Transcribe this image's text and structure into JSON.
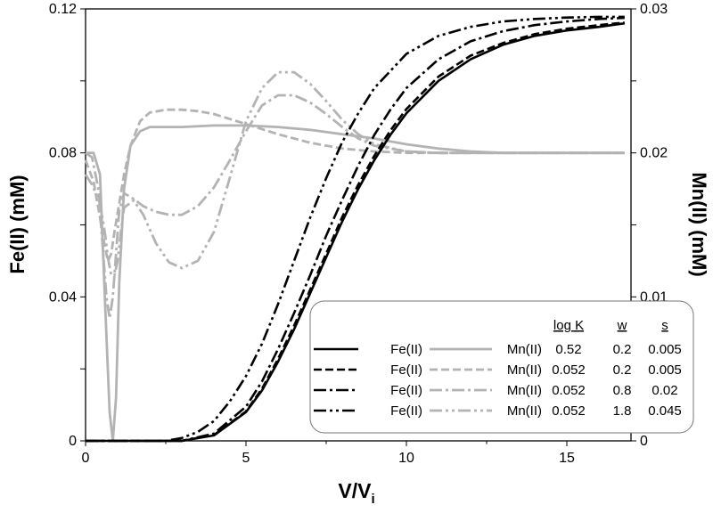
{
  "chart_data": {
    "type": "line",
    "xlabel": "V/V",
    "xlabel_sub": "i",
    "ylabel_left": "Fe(II) (mM)",
    "ylabel_right": "Mn(II) (mM)",
    "xlim": [
      0,
      17
    ],
    "ylim_left": [
      0,
      0.12
    ],
    "ylim_right": [
      0,
      0.03
    ],
    "x_ticks": [
      0,
      5,
      10,
      15
    ],
    "x_tick_labels": [
      "0",
      "5",
      "10",
      "15"
    ],
    "y_left_ticks": [
      0,
      0.04,
      0.08,
      0.12
    ],
    "y_left_tick_labels": [
      "0",
      "0.04",
      "0.08",
      "0.12"
    ],
    "y_right_ticks": [
      0,
      0.01,
      0.02,
      0.03
    ],
    "y_right_tick_labels": [
      "0",
      "0.01",
      "0.02",
      "0.03"
    ],
    "grid": false,
    "legend": {
      "placement": "bottom-right",
      "headers": [
        "log K",
        "w",
        "s"
      ],
      "rows": [
        {
          "fe_label": "Fe(II)",
          "mn_label": "Mn(II)",
          "logK": "0.52",
          "w": "0.2",
          "s": "0.005",
          "dash": "solid"
        },
        {
          "fe_label": "Fe(II)",
          "mn_label": "Mn(II)",
          "logK": "0.052",
          "w": "0.2",
          "s": "0.005",
          "dash": "dashed"
        },
        {
          "fe_label": "Fe(II)",
          "mn_label": "Mn(II)",
          "logK": "0.052",
          "w": "0.8",
          "s": "0.02",
          "dash": "dash-dot"
        },
        {
          "fe_label": "Fe(II)",
          "mn_label": "Mn(II)",
          "logK": "0.052",
          "w": "1.8",
          "s": "0.045",
          "dash": "dash-dot-dot"
        }
      ]
    },
    "colors": {
      "fe": "#000000",
      "mn": "#b3b3b3"
    },
    "series": [
      {
        "group": "fe",
        "dash": "solid",
        "axis": "left",
        "x": [
          0,
          3,
          4,
          5,
          5.5,
          6,
          6.5,
          7,
          7.5,
          8,
          8.5,
          9,
          9.5,
          10,
          11,
          12,
          13,
          14,
          15,
          16,
          16.8
        ],
        "y": [
          0,
          0,
          0.0015,
          0.008,
          0.014,
          0.022,
          0.031,
          0.041,
          0.051,
          0.061,
          0.07,
          0.078,
          0.085,
          0.091,
          0.1,
          0.106,
          0.11,
          0.1125,
          0.114,
          0.115,
          0.116
        ]
      },
      {
        "group": "fe",
        "dash": "dashed",
        "axis": "left",
        "x": [
          0,
          3,
          4,
          5,
          5.5,
          6,
          6.5,
          7,
          7.5,
          8,
          8.5,
          9,
          9.5,
          10,
          11,
          12,
          13,
          14,
          15,
          16,
          16.8
        ],
        "y": [
          0,
          0,
          0.0016,
          0.0082,
          0.0145,
          0.0228,
          0.032,
          0.042,
          0.052,
          0.0622,
          0.0712,
          0.0792,
          0.0862,
          0.0922,
          0.1012,
          0.107,
          0.1105,
          0.113,
          0.1145,
          0.1155,
          0.1162
        ]
      },
      {
        "group": "fe",
        "dash": "dash-dot",
        "axis": "left",
        "x": [
          0,
          3,
          4,
          5,
          5.5,
          6,
          6.5,
          7,
          7.5,
          8,
          8.5,
          9,
          9.5,
          10,
          11,
          12,
          13,
          14,
          15,
          16,
          16.8
        ],
        "y": [
          0,
          0,
          0.002,
          0.0095,
          0.0165,
          0.0255,
          0.0355,
          0.046,
          0.057,
          0.067,
          0.0765,
          0.085,
          0.092,
          0.098,
          0.106,
          0.111,
          0.1138,
          0.1155,
          0.1165,
          0.1172,
          0.1175
        ]
      },
      {
        "group": "fe",
        "dash": "dash-dot-dot",
        "axis": "left",
        "x": [
          0,
          2.5,
          3,
          3.5,
          4,
          4.5,
          5,
          5.5,
          6,
          6.5,
          7,
          7.5,
          8,
          8.5,
          9,
          10,
          11,
          12,
          13,
          14,
          15,
          16,
          16.8
        ],
        "y": [
          0,
          0,
          0.0008,
          0.0025,
          0.0055,
          0.011,
          0.018,
          0.027,
          0.038,
          0.05,
          0.062,
          0.073,
          0.083,
          0.091,
          0.098,
          0.1075,
          0.1125,
          0.115,
          0.1165,
          0.1172,
          0.1176,
          0.1178,
          0.1178
        ]
      },
      {
        "group": "mn",
        "dash": "solid",
        "axis": "right",
        "x": [
          0,
          0.25,
          0.45,
          0.6,
          0.75,
          0.85,
          0.95,
          1.05,
          1.2,
          1.4,
          1.7,
          2,
          2.5,
          3,
          4,
          5,
          6,
          7,
          8,
          9,
          10,
          11,
          12,
          13,
          14,
          15,
          16,
          16.8
        ],
        "y": [
          0.02,
          0.02,
          0.0185,
          0.01,
          0.002,
          0,
          0.003,
          0.011,
          0.0175,
          0.0205,
          0.0215,
          0.0218,
          0.0218,
          0.0218,
          0.0219,
          0.0219,
          0.0218,
          0.0216,
          0.0213,
          0.021,
          0.0206,
          0.0203,
          0.0201,
          0.02,
          0.02,
          0.02,
          0.02,
          0.02
        ]
      },
      {
        "group": "mn",
        "dash": "dashed",
        "axis": "right",
        "x": [
          0,
          0.25,
          0.45,
          0.6,
          0.7,
          0.8,
          0.9,
          1.05,
          1.2,
          1.4,
          1.7,
          2,
          2.5,
          3,
          3.5,
          4,
          5,
          6,
          7,
          8,
          9,
          10,
          11,
          12,
          13,
          14,
          15,
          16,
          16.8
        ],
        "y": [
          0.0195,
          0.018,
          0.0155,
          0.0135,
          0.0125,
          0.013,
          0.0145,
          0.0165,
          0.0185,
          0.0205,
          0.0222,
          0.0228,
          0.023,
          0.023,
          0.0229,
          0.0227,
          0.022,
          0.0213,
          0.0207,
          0.0203,
          0.0201,
          0.02,
          0.02,
          0.02,
          0.02,
          0.02,
          0.02,
          0.02,
          0.02
        ]
      },
      {
        "group": "mn",
        "dash": "dash-dot",
        "axis": "right",
        "x": [
          0,
          0.2,
          0.4,
          0.55,
          0.65,
          0.75,
          0.85,
          0.95,
          1.05,
          1.2,
          1.5,
          1.8,
          2.2,
          2.6,
          3,
          3.5,
          4,
          4.5,
          5,
          5.5,
          6,
          6.5,
          7,
          7.5,
          8,
          8.5,
          9,
          10,
          11,
          12,
          13,
          14,
          15,
          16,
          16.8
        ],
        "y": [
          0.02,
          0.0197,
          0.0175,
          0.013,
          0.01,
          0.0085,
          0.01,
          0.013,
          0.016,
          0.0172,
          0.0168,
          0.0163,
          0.0159,
          0.0157,
          0.0157,
          0.0163,
          0.0176,
          0.0195,
          0.0215,
          0.0233,
          0.024,
          0.024,
          0.0235,
          0.0227,
          0.0218,
          0.021,
          0.0205,
          0.0201,
          0.02,
          0.02,
          0.02,
          0.02,
          0.02,
          0.02,
          0.02
        ]
      },
      {
        "group": "mn",
        "dash": "dash-dot-dot",
        "axis": "right",
        "x": [
          0,
          0.2,
          0.45,
          0.6,
          0.7,
          0.8,
          0.9,
          1.0,
          1.1,
          1.2,
          1.5,
          1.8,
          2.2,
          2.6,
          3,
          3.5,
          4,
          4.5,
          5,
          5.5,
          6,
          6.5,
          7,
          7.5,
          8,
          8.5,
          9,
          10,
          11,
          12,
          13,
          14,
          15,
          16,
          16.8
        ],
        "y": [
          0.0185,
          0.0178,
          0.0165,
          0.0145,
          0.0127,
          0.0115,
          0.0115,
          0.0125,
          0.0145,
          0.0162,
          0.0167,
          0.0157,
          0.0137,
          0.0124,
          0.012,
          0.0125,
          0.0145,
          0.0183,
          0.0222,
          0.0245,
          0.0256,
          0.0256,
          0.0248,
          0.0236,
          0.0223,
          0.0213,
          0.0206,
          0.0201,
          0.02,
          0.02,
          0.02,
          0.02,
          0.02,
          0.02,
          0.02
        ]
      }
    ]
  }
}
